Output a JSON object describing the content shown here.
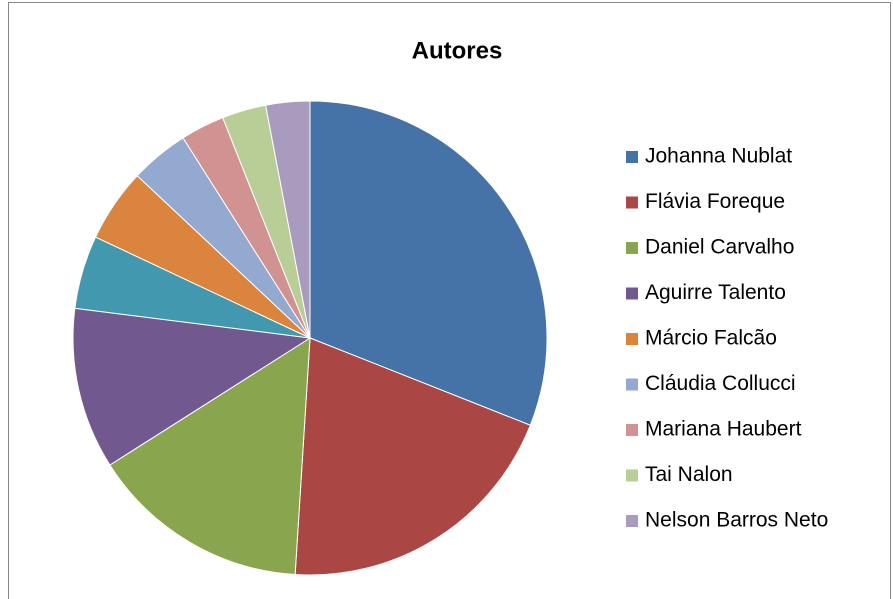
{
  "chart_data": {
    "type": "pie",
    "title": "Autores",
    "categories": [
      "Johanna Nublat",
      "Flávia Foreque",
      "Daniel Carvalho",
      "Aguirre Talento",
      null,
      "Márcio Falcão",
      "Cláudia Collucci",
      "Mariana Haubert",
      "Tai Nalon",
      "Nelson Barros Neto"
    ],
    "values": [
      31,
      20,
      15,
      11,
      5,
      5,
      4,
      3,
      3,
      3
    ],
    "colors": [
      "#4572a7",
      "#aa4643",
      "#89a54e",
      "#71588f",
      "#4198af",
      "#db843d",
      "#93a9cf",
      "#d19392",
      "#b9cd96",
      "#a99bbd"
    ],
    "legend": "right"
  }
}
